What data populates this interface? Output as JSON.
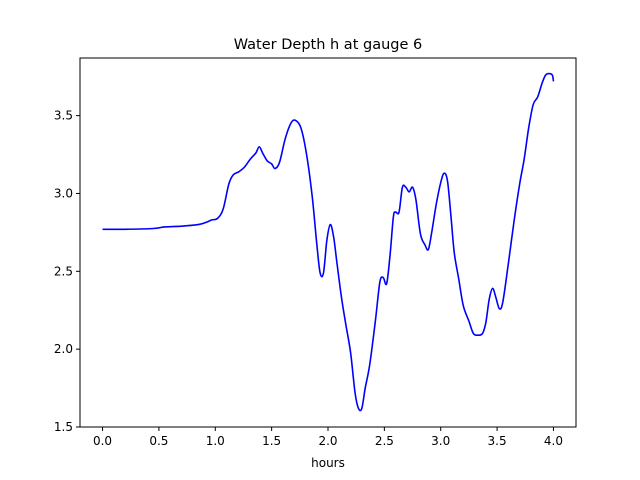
{
  "chart_data": {
    "type": "line",
    "title": "Water Depth h at gauge 6",
    "xlabel": "hours",
    "ylabel": "",
    "xlim": [
      -0.2,
      4.2
    ],
    "ylim": [
      1.5,
      3.87
    ],
    "xticks": [
      "0.0",
      "0.5",
      "1.0",
      "1.5",
      "2.0",
      "2.5",
      "3.0",
      "3.5",
      "4.0"
    ],
    "yticks": [
      "1.5",
      "2.0",
      "2.5",
      "3.0",
      "3.5"
    ],
    "grid": false,
    "series": [
      {
        "color": "#0000ff",
        "x": [
          0.0,
          0.2,
          0.45,
          0.55,
          0.7,
          0.85,
          0.92,
          0.97,
          1.02,
          1.07,
          1.12,
          1.16,
          1.21,
          1.26,
          1.31,
          1.36,
          1.39,
          1.42,
          1.46,
          1.5,
          1.53,
          1.57,
          1.62,
          1.67,
          1.71,
          1.76,
          1.81,
          1.86,
          1.9,
          1.93,
          1.96,
          1.99,
          2.02,
          2.05,
          2.08,
          2.12,
          2.16,
          2.2,
          2.24,
          2.27,
          2.3,
          2.33,
          2.37,
          2.42,
          2.46,
          2.49,
          2.52,
          2.55,
          2.58,
          2.6,
          2.63,
          2.66,
          2.69,
          2.72,
          2.75,
          2.78,
          2.82,
          2.86,
          2.89,
          2.92,
          2.96,
          3.0,
          3.03,
          3.06,
          3.09,
          3.12,
          3.16,
          3.2,
          3.25,
          3.29,
          3.33,
          3.37,
          3.4,
          3.43,
          3.46,
          3.49,
          3.52,
          3.55,
          3.6,
          3.65,
          3.7,
          3.74,
          3.78,
          3.82,
          3.86,
          3.9,
          3.93,
          3.96,
          3.99,
          4.0
        ],
        "y": [
          2.77,
          2.77,
          2.775,
          2.785,
          2.79,
          2.8,
          2.815,
          2.83,
          2.84,
          2.9,
          3.06,
          3.12,
          3.14,
          3.17,
          3.22,
          3.26,
          3.3,
          3.26,
          3.21,
          3.19,
          3.16,
          3.2,
          3.35,
          3.45,
          3.47,
          3.42,
          3.25,
          2.98,
          2.68,
          2.49,
          2.49,
          2.7,
          2.8,
          2.72,
          2.55,
          2.33,
          2.15,
          1.98,
          1.72,
          1.62,
          1.62,
          1.75,
          1.9,
          2.18,
          2.43,
          2.46,
          2.42,
          2.6,
          2.85,
          2.88,
          2.88,
          3.04,
          3.04,
          3.01,
          3.04,
          2.96,
          2.74,
          2.67,
          2.64,
          2.75,
          2.93,
          3.07,
          3.13,
          3.08,
          2.86,
          2.62,
          2.45,
          2.28,
          2.18,
          2.1,
          2.09,
          2.1,
          2.17,
          2.32,
          2.39,
          2.33,
          2.26,
          2.3,
          2.55,
          2.82,
          3.06,
          3.22,
          3.42,
          3.57,
          3.62,
          3.71,
          3.76,
          3.77,
          3.76,
          3.72
        ]
      }
    ]
  }
}
